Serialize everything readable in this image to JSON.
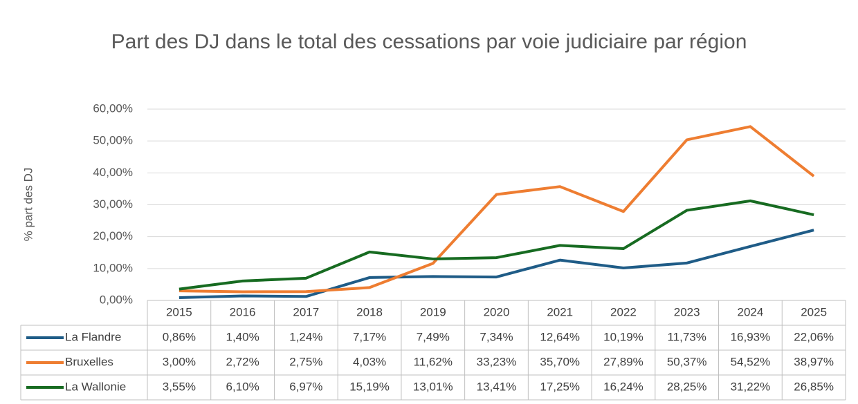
{
  "chart_data": {
    "type": "line",
    "title": "Part des DJ dans le total des cessations par voie judiciaire par région",
    "ylabel": "% part des DJ",
    "categories": [
      "2015",
      "2016",
      "2017",
      "2018",
      "2019",
      "2020",
      "2021",
      "2022",
      "2023",
      "2024",
      "2025"
    ],
    "ylim": [
      0,
      60
    ],
    "yticks": [
      {
        "value": 0,
        "label": "0,00%"
      },
      {
        "value": 10,
        "label": "10,00%"
      },
      {
        "value": 20,
        "label": "20,00%"
      },
      {
        "value": 30,
        "label": "30,00%"
      },
      {
        "value": 40,
        "label": "40,00%"
      },
      {
        "value": 50,
        "label": "50,00%"
      },
      {
        "value": 60,
        "label": "60,00%"
      }
    ],
    "grid": true,
    "series": [
      {
        "name": "La Flandre",
        "color": "#1f5c87",
        "values": [
          0.86,
          1.4,
          1.24,
          7.17,
          7.49,
          7.34,
          12.64,
          10.19,
          11.73,
          16.93,
          22.06
        ],
        "value_labels": [
          "0,86%",
          "1,40%",
          "1,24%",
          "7,17%",
          "7,49%",
          "7,34%",
          "12,64%",
          "10,19%",
          "11,73%",
          "16,93%",
          "22,06%"
        ]
      },
      {
        "name": "Bruxelles",
        "color": "#ee7d31",
        "values": [
          3.0,
          2.72,
          2.75,
          4.03,
          11.62,
          33.23,
          35.7,
          27.89,
          50.37,
          54.52,
          38.97
        ],
        "value_labels": [
          "3,00%",
          "2,72%",
          "2,75%",
          "4,03%",
          "11,62%",
          "33,23%",
          "35,70%",
          "27,89%",
          "50,37%",
          "54,52%",
          "38,97%"
        ]
      },
      {
        "name": "La Wallonie",
        "color": "#176b21",
        "values": [
          3.55,
          6.1,
          6.97,
          15.19,
          13.01,
          13.41,
          17.25,
          16.24,
          28.25,
          31.22,
          26.85
        ],
        "value_labels": [
          "3,55%",
          "6,10%",
          "6,97%",
          "15,19%",
          "13,01%",
          "13,41%",
          "17,25%",
          "16,24%",
          "28,25%",
          "31,22%",
          "26,85%"
        ]
      }
    ]
  }
}
